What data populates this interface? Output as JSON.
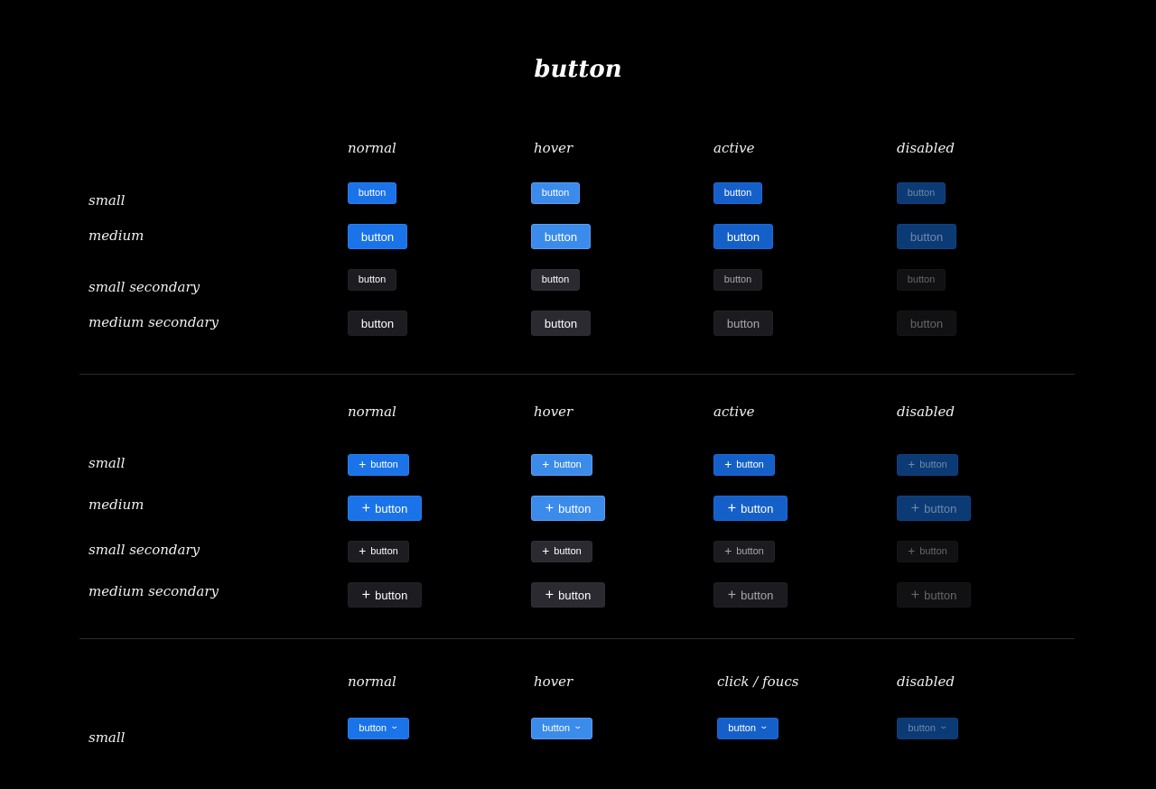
{
  "title": "button",
  "button_label": "button",
  "icons": {
    "plus": "plus-icon",
    "chevron": "chevron-down-icon"
  },
  "colors": {
    "primary": "#1a73e8",
    "primary_hover": "#3b8beb",
    "primary_active": "#1560c8",
    "primary_disabled": "#0b3a75",
    "secondary": "#1c1c21",
    "background": "#000000"
  },
  "sections": [
    {
      "headers": [
        "normal",
        "hover",
        "active",
        "disabled"
      ],
      "rows": [
        {
          "label": "small"
        },
        {
          "label": "medium"
        },
        {
          "label": "small secondary"
        },
        {
          "label": "medium secondary"
        }
      ]
    },
    {
      "headers": [
        "normal",
        "hover",
        "active",
        "disabled"
      ],
      "rows": [
        {
          "label": "small"
        },
        {
          "label": "medium"
        },
        {
          "label": "small secondary"
        },
        {
          "label": "medium secondary"
        }
      ]
    },
    {
      "headers": [
        "normal",
        "hover",
        "click / foucs",
        "disabled"
      ],
      "rows": [
        {
          "label": "small"
        }
      ]
    }
  ]
}
